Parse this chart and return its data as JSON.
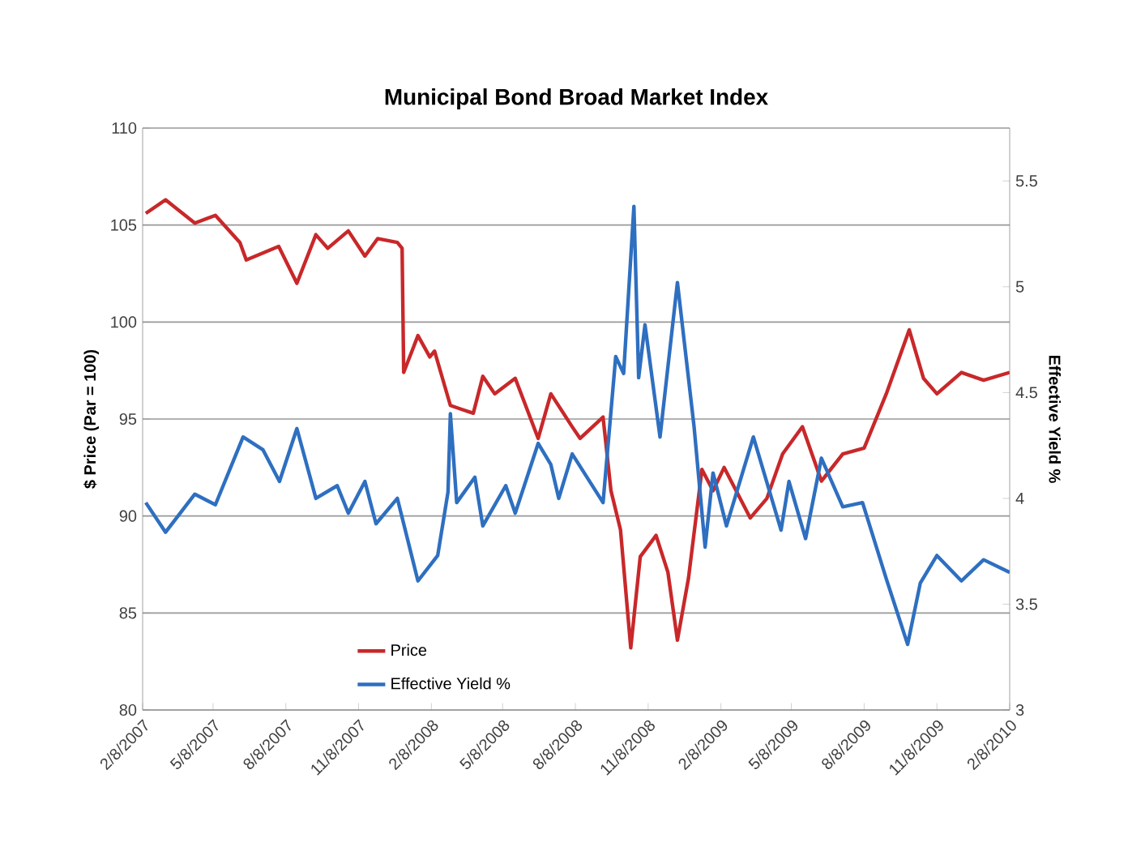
{
  "chart_data": {
    "type": "line",
    "title": "Municipal Bond Broad Market Index",
    "ylabel": "$ Price (Par = 100)",
    "y2label": "Effective Yield %",
    "xlim": [
      "2007-02-08",
      "2010-02-08"
    ],
    "xticks": [
      {
        "value": "2007-02-08",
        "label": "2/8/2007"
      },
      {
        "value": "2007-05-08",
        "label": "5/8/2007"
      },
      {
        "value": "2007-08-08",
        "label": "8/8/2007"
      },
      {
        "value": "2007-11-08",
        "label": "11/8/2007"
      },
      {
        "value": "2008-02-08",
        "label": "2/8/2008"
      },
      {
        "value": "2008-05-08",
        "label": "5/8/2008"
      },
      {
        "value": "2008-08-08",
        "label": "8/8/2008"
      },
      {
        "value": "2008-11-08",
        "label": "11/8/2008"
      },
      {
        "value": "2009-02-08",
        "label": "2/8/2009"
      },
      {
        "value": "2009-05-08",
        "label": "5/8/2009"
      },
      {
        "value": "2009-08-08",
        "label": "8/8/2009"
      },
      {
        "value": "2009-11-08",
        "label": "11/8/2009"
      },
      {
        "value": "2010-02-08",
        "label": "2/8/2010"
      }
    ],
    "ylim": [
      80,
      110
    ],
    "yticks": [
      80,
      85,
      90,
      95,
      100,
      105,
      110
    ],
    "y2lim": [
      3,
      5.75
    ],
    "y2ticks": [
      3,
      3.5,
      4,
      4.5,
      5,
      5.5
    ],
    "grid": "y",
    "legend": "bottom",
    "marker": "none",
    "line_style": "solid",
    "series": [
      {
        "name": "Price",
        "color": "#c8282a",
        "axis": "y",
        "x": [
          "2007-02-12",
          "2007-03-09",
          "2007-04-15",
          "2007-05-11",
          "2007-06-11",
          "2007-06-19",
          "2007-07-30",
          "2007-08-22",
          "2007-09-15",
          "2007-09-30",
          "2007-10-26",
          "2007-11-16",
          "2007-12-02",
          "2007-12-27",
          "2008-01-02",
          "2008-01-04",
          "2008-01-22",
          "2008-02-06",
          "2008-02-12",
          "2008-03-03",
          "2008-03-17",
          "2008-04-01",
          "2008-04-13",
          "2008-04-28",
          "2008-05-24",
          "2008-06-22",
          "2008-07-08",
          "2008-08-04",
          "2008-08-14",
          "2008-09-12",
          "2008-09-22",
          "2008-10-04",
          "2008-10-17",
          "2008-10-29",
          "2008-11-18",
          "2008-12-03",
          "2008-12-15",
          "2008-12-29",
          "2009-01-15",
          "2009-01-29",
          "2009-02-12",
          "2009-03-17",
          "2009-04-07",
          "2009-04-27",
          "2009-05-22",
          "2009-06-15",
          "2009-07-12",
          "2009-08-08",
          "2009-09-05",
          "2009-10-04",
          "2009-10-22",
          "2009-11-08",
          "2009-12-09",
          "2010-01-06",
          "2010-02-08"
        ],
        "values": [
          105.6,
          106.3,
          105.1,
          105.5,
          104.1,
          103.2,
          103.9,
          102.0,
          104.5,
          103.8,
          104.7,
          103.4,
          104.3,
          104.1,
          103.8,
          97.4,
          99.3,
          98.2,
          98.5,
          95.7,
          95.5,
          95.3,
          97.2,
          96.3,
          97.1,
          94.0,
          96.3,
          94.6,
          94.0,
          95.1,
          91.3,
          89.3,
          83.2,
          87.9,
          89.0,
          87.1,
          83.6,
          86.8,
          92.4,
          91.3,
          92.5,
          89.9,
          90.9,
          93.2,
          94.6,
          91.8,
          93.2,
          93.5,
          96.3,
          99.6,
          97.1,
          96.3,
          97.4,
          97.0,
          97.4
        ]
      },
      {
        "name": "Effective Yield %",
        "color": "#2e6fc0",
        "axis": "y2",
        "x": [
          "2007-02-12",
          "2007-03-09",
          "2007-04-15",
          "2007-05-11",
          "2007-06-15",
          "2007-07-10",
          "2007-07-31",
          "2007-08-22",
          "2007-09-15",
          "2007-10-12",
          "2007-10-26",
          "2007-11-16",
          "2007-11-30",
          "2007-12-27",
          "2008-01-22",
          "2008-02-16",
          "2008-02-29",
          "2008-03-03",
          "2008-03-11",
          "2008-04-03",
          "2008-04-13",
          "2008-05-12",
          "2008-05-24",
          "2008-06-22",
          "2008-07-08",
          "2008-07-18",
          "2008-08-04",
          "2008-09-12",
          "2008-09-28",
          "2008-10-08",
          "2008-10-21",
          "2008-10-27",
          "2008-11-04",
          "2008-11-23",
          "2008-12-15",
          "2009-01-05",
          "2009-01-19",
          "2009-01-29",
          "2009-02-15",
          "2009-03-21",
          "2009-04-25",
          "2009-05-05",
          "2009-05-26",
          "2009-06-15",
          "2009-07-12",
          "2009-08-06",
          "2009-09-05",
          "2009-10-02",
          "2009-10-18",
          "2009-11-08",
          "2009-12-09",
          "2010-01-06",
          "2010-02-08"
        ],
        "values": [
          3.98,
          3.84,
          4.02,
          3.97,
          4.29,
          4.23,
          4.08,
          4.33,
          4.0,
          4.06,
          3.93,
          4.08,
          3.88,
          4.0,
          3.61,
          3.73,
          4.03,
          4.4,
          3.98,
          4.1,
          3.87,
          4.06,
          3.93,
          4.26,
          4.16,
          4.0,
          4.21,
          3.98,
          4.67,
          4.59,
          5.38,
          4.57,
          4.82,
          4.29,
          5.02,
          4.34,
          3.77,
          4.12,
          3.87,
          4.29,
          3.85,
          4.08,
          3.81,
          4.19,
          3.96,
          3.98,
          3.62,
          3.31,
          3.6,
          3.73,
          3.61,
          3.71,
          3.65
        ]
      }
    ]
  }
}
